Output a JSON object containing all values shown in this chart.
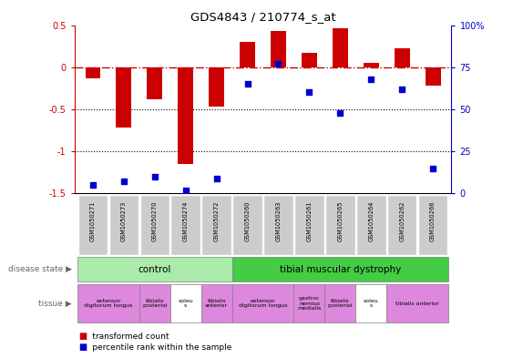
{
  "title": "GDS4843 / 210774_s_at",
  "samples": [
    "GSM1050271",
    "GSM1050273",
    "GSM1050270",
    "GSM1050274",
    "GSM1050272",
    "GSM1050260",
    "GSM1050263",
    "GSM1050261",
    "GSM1050265",
    "GSM1050264",
    "GSM1050262",
    "GSM1050266"
  ],
  "bar_values": [
    -0.13,
    -0.72,
    -0.38,
    -1.15,
    -0.47,
    0.3,
    0.43,
    0.17,
    0.46,
    0.05,
    0.22,
    -0.22
  ],
  "percentile_values": [
    5,
    7,
    10,
    2,
    9,
    65,
    77,
    60,
    48,
    68,
    62,
    15
  ],
  "bar_color": "#cc0000",
  "percentile_color": "#0000cc",
  "ylim": [
    -1.5,
    0.5
  ],
  "y2lim": [
    0,
    100
  ],
  "yticks": [
    -1.5,
    -1.0,
    -0.5,
    0.0,
    0.5
  ],
  "ytick_labels": [
    "-1.5",
    "-1",
    "-0.5",
    "0",
    "0.5"
  ],
  "y2ticks": [
    0,
    25,
    50,
    75,
    100
  ],
  "y2tick_labels": [
    "0",
    "25",
    "50",
    "75",
    "100%"
  ],
  "disease_state_groups": [
    {
      "label": "control",
      "start": 0,
      "end": 5,
      "color": "#aaeaaa"
    },
    {
      "label": "tibial muscular dystrophy",
      "start": 5,
      "end": 12,
      "color": "#44cc44"
    }
  ],
  "tissue_groups": [
    {
      "label": "extensor\ndigitorum longus",
      "start": 0,
      "end": 2,
      "color": "#dd88dd"
    },
    {
      "label": "tibialis\nposterioi",
      "start": 2,
      "end": 3,
      "color": "#dd88dd"
    },
    {
      "label": "soleu\ns",
      "start": 3,
      "end": 4,
      "color": "#ffffff"
    },
    {
      "label": "tibialis\nanterior",
      "start": 4,
      "end": 5,
      "color": "#dd88dd"
    },
    {
      "label": "extensor\ndigitorum longus",
      "start": 5,
      "end": 7,
      "color": "#dd88dd"
    },
    {
      "label": "gastroc\nnemius\nmedialis",
      "start": 7,
      "end": 8,
      "color": "#dd88dd"
    },
    {
      "label": "tibialis\nposterioi",
      "start": 8,
      "end": 9,
      "color": "#dd88dd"
    },
    {
      "label": "soleu\ns",
      "start": 9,
      "end": 10,
      "color": "#ffffff"
    },
    {
      "label": "tibialis anterior",
      "start": 10,
      "end": 12,
      "color": "#dd88dd"
    }
  ],
  "hline_y": 0,
  "hline_color": "#cc0000",
  "dotted_lines": [
    -0.5,
    -1.0
  ],
  "left_axis_color": "#cc0000",
  "right_axis_color": "#0000cc",
  "xticklabel_bg": "#cccccc",
  "label_disease_state": "disease state",
  "label_tissue": "tissue",
  "legend_red": "transformed count",
  "legend_blue": "percentile rank within the sample"
}
